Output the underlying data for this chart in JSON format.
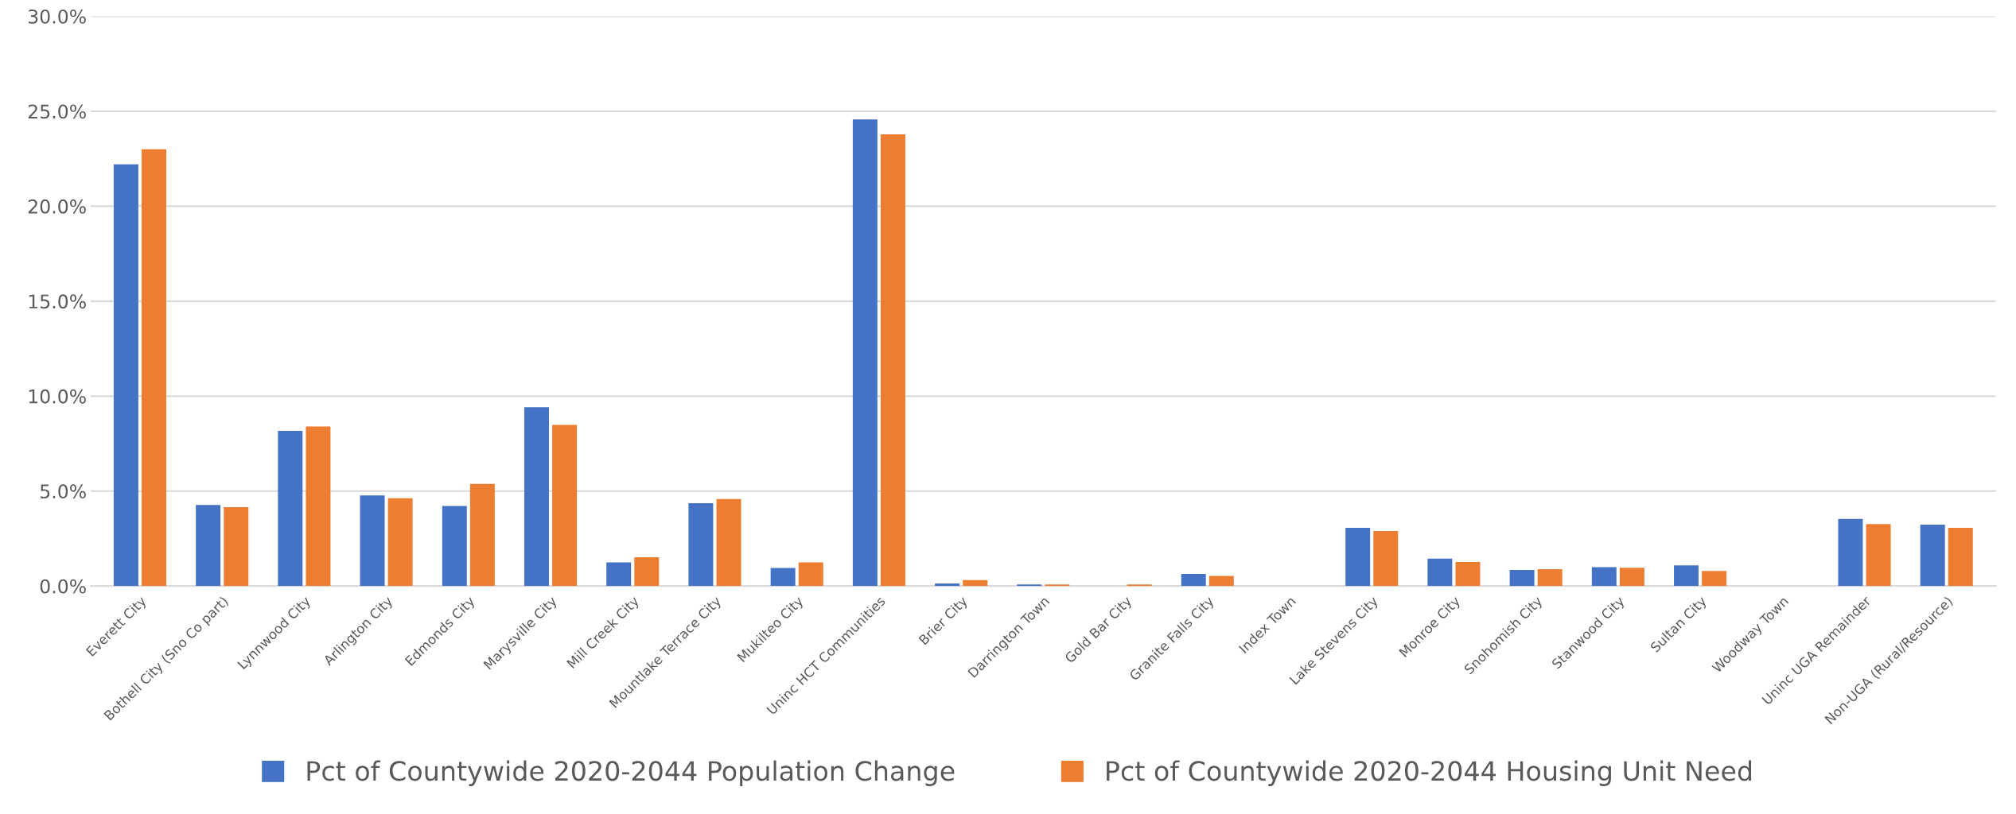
{
  "chart_data": {
    "type": "bar",
    "categories": [
      "Everett City",
      "Bothell City (Sno Co part)",
      "Lynnwood City",
      "Arlington City",
      "Edmonds City",
      "Marysville City",
      "Mill Creek City",
      "Mountlake Terrace City",
      "Mukilteo City",
      "Uninc HCT Communities",
      "Brier City",
      "Darrington Town",
      "Gold Bar City",
      "Granite Falls City",
      "Index Town",
      "Lake Stevens City",
      "Monroe City",
      "Snohomish City",
      "Stanwood City",
      "Sultan City",
      "Woodway Town",
      "Uninc UGA Remainder",
      "Non-UGA (Rural/Resource)"
    ],
    "series": [
      {
        "name": "Pct of Countywide 2020-2044 Population Change",
        "color": "#4472c4",
        "values": [
          22.2,
          4.27,
          8.17,
          4.77,
          4.22,
          9.42,
          1.25,
          4.36,
          0.95,
          24.57,
          0.14,
          0.09,
          0,
          0.64,
          0,
          3.07,
          1.45,
          0.85,
          1.0,
          1.09,
          0,
          3.54,
          3.23
        ]
      },
      {
        "name": "Pct of Countywide 2020-2044 Housing Unit Need",
        "color": "#ed7d31",
        "values": [
          23.0,
          4.15,
          8.4,
          4.63,
          5.38,
          8.49,
          1.52,
          4.58,
          1.25,
          23.78,
          0.32,
          0.09,
          0.09,
          0.54,
          0,
          2.9,
          1.27,
          0.89,
          0.96,
          0.8,
          0,
          3.27,
          3.07
        ]
      }
    ],
    "ylim": [
      0,
      30
    ],
    "yticks": [
      {
        "value": 0,
        "label": "0.0%"
      },
      {
        "value": 5,
        "label": "5.0%"
      },
      {
        "value": 10,
        "label": "10.0%"
      },
      {
        "value": 15,
        "label": "15.0%"
      },
      {
        "value": 20,
        "label": "20.0%"
      },
      {
        "value": 25,
        "label": "25.0%"
      },
      {
        "value": 30,
        "label": "30.0%"
      }
    ],
    "grid": "y",
    "legend": "bottom"
  }
}
